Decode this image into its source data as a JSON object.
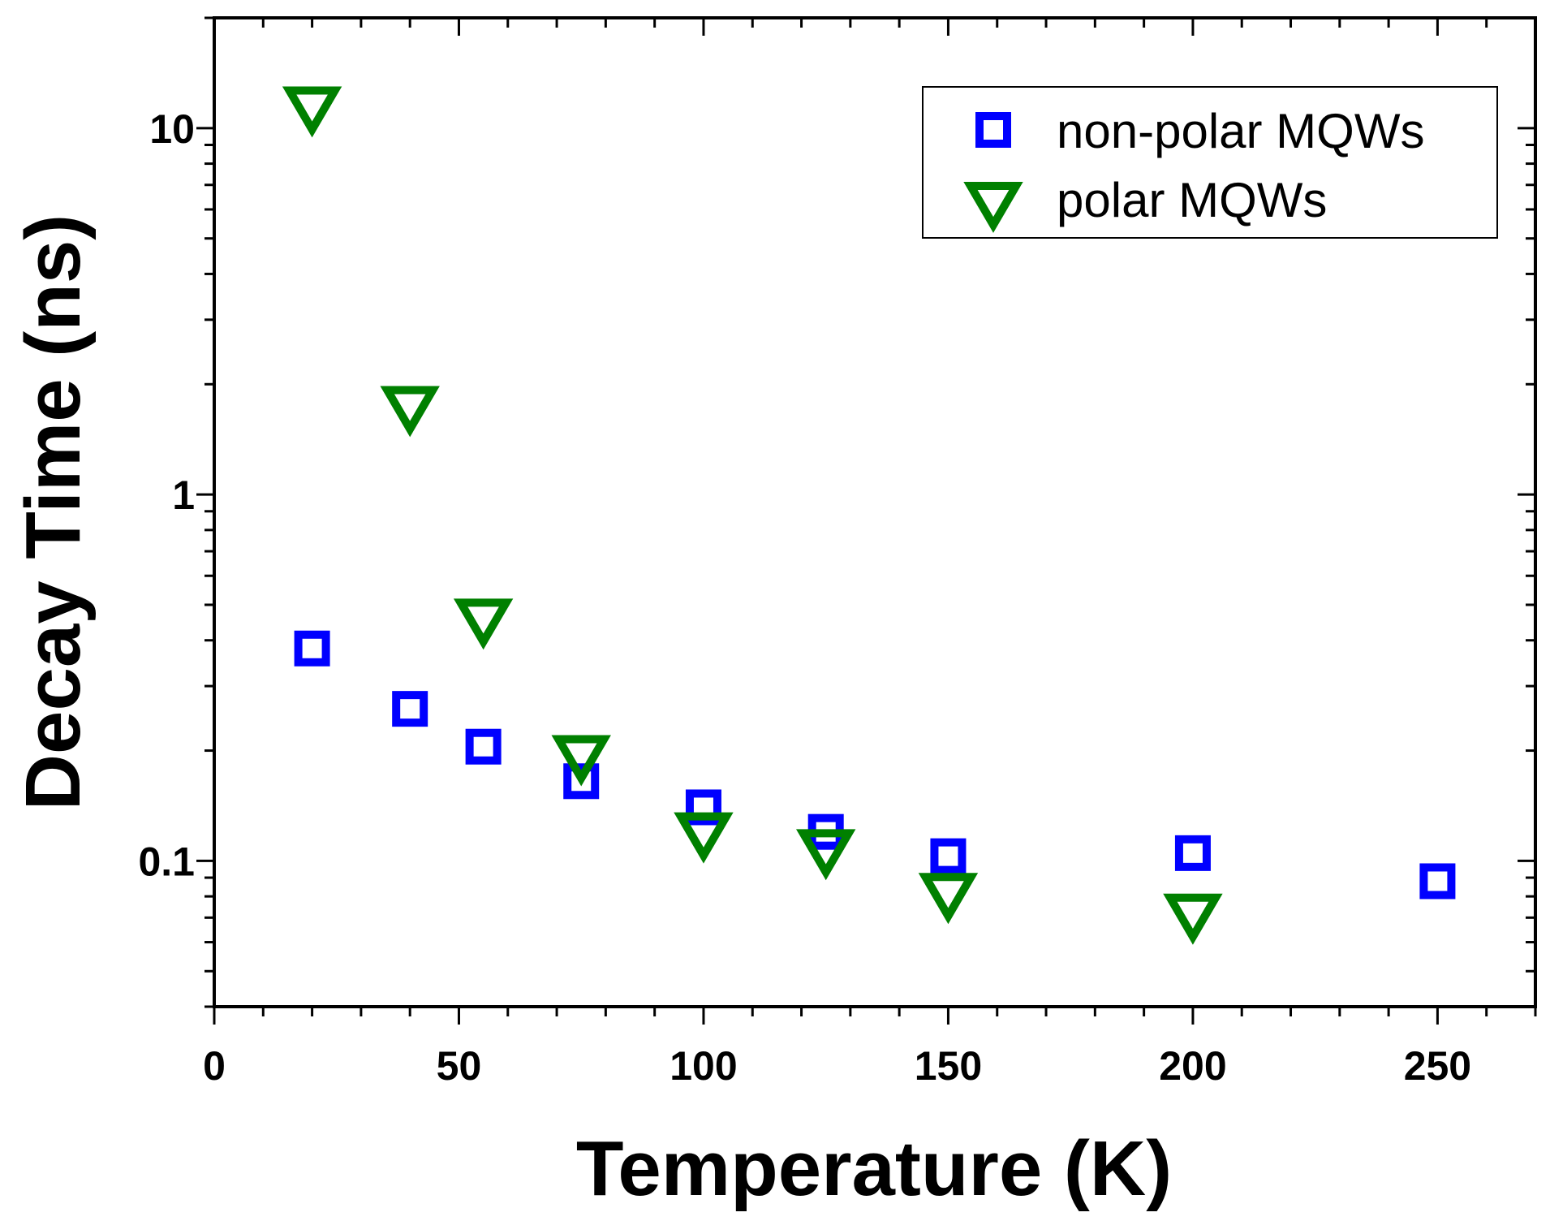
{
  "chart_data": {
    "type": "scatter",
    "title": "",
    "xlabel": "Temperature (K)",
    "ylabel": "Decay Time (ns)",
    "xlim": [
      0,
      270
    ],
    "ylim": [
      0.04,
      20
    ],
    "yscale": "log",
    "grid": false,
    "legend_position": "top-right",
    "x_ticks": [
      {
        "value": 0,
        "label": "0"
      },
      {
        "value": 50,
        "label": "50"
      },
      {
        "value": 100,
        "label": "100"
      },
      {
        "value": 150,
        "label": "150"
      },
      {
        "value": 200,
        "label": "200"
      },
      {
        "value": 250,
        "label": "250"
      }
    ],
    "y_ticks": [
      {
        "value": 0.1,
        "label": "0.1"
      },
      {
        "value": 1,
        "label": "1"
      },
      {
        "value": 10,
        "label": "10"
      }
    ],
    "series": [
      {
        "name": "non-polar MQWs",
        "marker": "square",
        "color": "#0000ff",
        "x": [
          20,
          40,
          55,
          75,
          100,
          125,
          150,
          200,
          250
        ],
        "y": [
          0.38,
          0.26,
          0.205,
          0.165,
          0.14,
          0.12,
          0.103,
          0.105,
          0.088
        ]
      },
      {
        "name": "polar MQWs",
        "marker": "triangle-down",
        "color": "#008000",
        "x": [
          20,
          40,
          55,
          75,
          100,
          125,
          150,
          200
        ],
        "y": [
          11.5,
          1.75,
          0.46,
          0.195,
          0.12,
          0.108,
          0.082,
          0.072
        ]
      }
    ]
  }
}
